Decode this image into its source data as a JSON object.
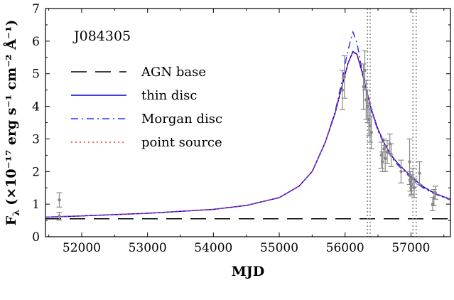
{
  "chart_data": {
    "type": "line",
    "object_label": "J084305",
    "xlabel": "MJD",
    "ylabel": "F",
    "ylabel_sub": "λ",
    "ylabel_units": "(×10⁻¹⁷ erg s⁻¹ cm⁻² Å⁻¹)",
    "xlim": [
      51450,
      57600
    ],
    "ylim": [
      0,
      7
    ],
    "xticks": [
      52000,
      53000,
      54000,
      55000,
      56000,
      57000
    ],
    "yticks": [
      0,
      1,
      2,
      3,
      4,
      5,
      6,
      7
    ],
    "grid": false,
    "legend_position": "upper-left",
    "series": [
      {
        "name": "AGN base",
        "style": "dashed",
        "color": "#000000",
        "x": [
          51450,
          57600
        ],
        "y": [
          0.55,
          0.55
        ]
      },
      {
        "name": "thin disc",
        "style": "solid",
        "color": "#0000cc",
        "x": [
          51450,
          52000,
          53000,
          54000,
          54500,
          55000,
          55300,
          55500,
          55700,
          55850,
          55950,
          56050,
          56120,
          56180,
          56250,
          56300,
          56350,
          56400,
          56500,
          56600,
          56700,
          56800,
          56900,
          57000,
          57100,
          57200,
          57300,
          57400,
          57600
        ],
        "y": [
          0.6,
          0.64,
          0.72,
          0.84,
          0.96,
          1.2,
          1.55,
          2.0,
          2.9,
          3.8,
          4.6,
          5.35,
          5.68,
          5.6,
          5.1,
          4.7,
          4.3,
          3.9,
          3.3,
          2.85,
          2.5,
          2.25,
          2.05,
          1.85,
          1.68,
          1.52,
          1.4,
          1.3,
          1.15
        ]
      },
      {
        "name": "Morgan disc",
        "style": "dashdot",
        "color": "#3333ff",
        "x": [
          51450,
          52000,
          53000,
          54000,
          54500,
          55000,
          55300,
          55500,
          55700,
          55850,
          55950,
          56030,
          56080,
          56120,
          56180,
          56250,
          56300,
          56350,
          56400,
          56500,
          56600,
          56700,
          56800,
          56900,
          57000,
          57100,
          57200,
          57300,
          57400,
          57600
        ],
        "y": [
          0.6,
          0.64,
          0.72,
          0.84,
          0.96,
          1.2,
          1.55,
          2.0,
          2.9,
          3.85,
          4.75,
          5.6,
          6.0,
          6.28,
          5.95,
          5.2,
          4.7,
          4.25,
          3.85,
          3.25,
          2.8,
          2.45,
          2.2,
          2.0,
          1.8,
          1.62,
          1.48,
          1.37,
          1.28,
          1.13
        ]
      },
      {
        "name": "point source",
        "style": "dotted",
        "color": "#ff3333",
        "x": [
          51450,
          52000,
          53000,
          54000,
          54500,
          55000,
          55300,
          55500,
          55700,
          55850,
          55950,
          56050,
          56120,
          56180,
          56250,
          56300,
          56350,
          56400,
          56500,
          56600,
          56700,
          56800,
          56900,
          57000,
          57100,
          57200,
          57300,
          57400,
          57600
        ],
        "y": [
          0.6,
          0.64,
          0.72,
          0.84,
          0.96,
          1.2,
          1.55,
          2.0,
          2.9,
          3.8,
          4.6,
          5.35,
          5.66,
          5.58,
          5.1,
          4.7,
          4.3,
          3.9,
          3.3,
          2.85,
          2.5,
          2.25,
          2.05,
          1.85,
          1.68,
          1.52,
          1.4,
          1.3,
          1.15
        ]
      }
    ],
    "observations": {
      "color": "#888888",
      "points": [
        {
          "x": 51660,
          "y": 1.13,
          "err": 0.22
        },
        {
          "x": 51660,
          "y": 0.63,
          "err": 0.12
        },
        {
          "x": 55960,
          "y": 4.5,
          "err": 0.6
        },
        {
          "x": 55990,
          "y": 4.9,
          "err": 0.65
        },
        {
          "x": 56280,
          "y": 4.6,
          "err": 0.7
        },
        {
          "x": 56300,
          "y": 5.1,
          "err": 0.6
        },
        {
          "x": 56320,
          "y": 4.2,
          "err": 0.6
        },
        {
          "x": 56340,
          "y": 4.0,
          "err": 0.5
        },
        {
          "x": 56360,
          "y": 3.6,
          "err": 0.5
        },
        {
          "x": 56380,
          "y": 3.4,
          "err": 0.5
        },
        {
          "x": 56400,
          "y": 3.2,
          "err": 0.5
        },
        {
          "x": 56550,
          "y": 2.5,
          "err": 0.4
        },
        {
          "x": 56570,
          "y": 2.3,
          "err": 0.3
        },
        {
          "x": 56590,
          "y": 2.7,
          "err": 0.3
        },
        {
          "x": 56610,
          "y": 2.4,
          "err": 0.4
        },
        {
          "x": 56640,
          "y": 2.6,
          "err": 0.35
        },
        {
          "x": 56680,
          "y": 2.85,
          "err": 0.3
        },
        {
          "x": 56700,
          "y": 2.5,
          "err": 0.35
        },
        {
          "x": 56850,
          "y": 2.0,
          "err": 0.35
        },
        {
          "x": 56980,
          "y": 2.3,
          "err": 0.7
        },
        {
          "x": 56990,
          "y": 1.7,
          "err": 0.3
        },
        {
          "x": 57000,
          "y": 1.5,
          "err": 0.25
        },
        {
          "x": 57010,
          "y": 1.6,
          "err": 0.3
        },
        {
          "x": 57030,
          "y": 1.8,
          "err": 0.3
        },
        {
          "x": 57050,
          "y": 1.5,
          "err": 0.3
        },
        {
          "x": 57130,
          "y": 1.95,
          "err": 0.35
        },
        {
          "x": 57330,
          "y": 1.0,
          "err": 0.2
        },
        {
          "x": 57350,
          "y": 1.2,
          "err": 0.25
        },
        {
          "x": 57370,
          "y": 1.35,
          "err": 0.2
        }
      ]
    },
    "vertical_markers": {
      "color": "#888888",
      "style": "dotted",
      "x": [
        56340,
        56380,
        57030,
        57080
      ]
    }
  }
}
